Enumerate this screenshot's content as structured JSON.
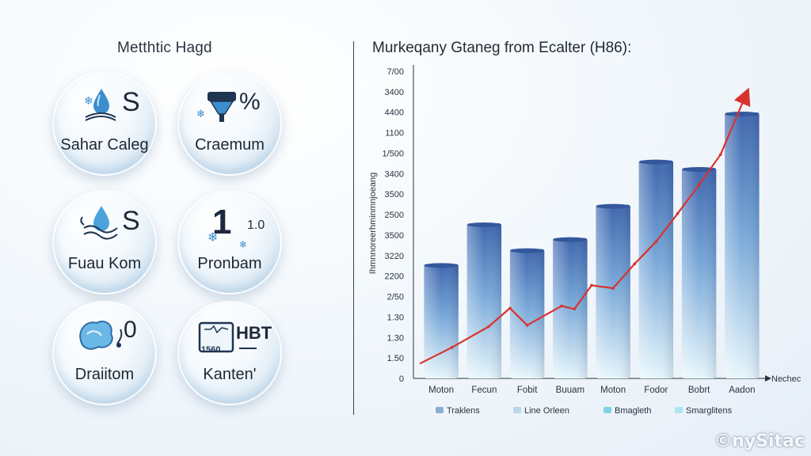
{
  "left_panel": {
    "title": "Metthtic Hagd",
    "tiles": [
      {
        "label": "Sahar Caleg",
        "icon": "water-drop-book-icon",
        "badge": "S"
      },
      {
        "label": "Craemum",
        "icon": "funnel-percent-icon",
        "badge": "%"
      },
      {
        "label": "Fuau Kom",
        "icon": "water-drop-waves-icon",
        "badge": "S"
      },
      {
        "label": "Pronbam",
        "icon": "number-one-icon",
        "badge": "1",
        "badge_small": "1.0"
      },
      {
        "label": "Draiitom",
        "icon": "water-creature-icon",
        "badge": "0"
      },
      {
        "label": "Kanten'",
        "icon": "thermometer-box-icon",
        "badge": "HBT",
        "badge_small": "1560"
      }
    ]
  },
  "chart_data": {
    "type": "bar",
    "title": "Murkeqany Gtaneg from Ecalter (H86):",
    "ylabel": "Ihmnnoreerhminmnjoeang",
    "xlabel": "Nechec",
    "y_ticks": [
      "7/00",
      "3400",
      "4400",
      "1100",
      "1/500",
      "3400",
      "3500",
      "2500",
      "3500",
      "3220",
      "2200",
      "2/50",
      "1.30",
      "1.30",
      "1.50",
      "0"
    ],
    "categories": [
      "Moton",
      "Fecun",
      "Fobit",
      "Buuam",
      "Moton",
      "Fodor",
      "Bobrt",
      "Aadon"
    ],
    "bars": [
      {
        "x": 0.5,
        "value": 1550
      },
      {
        "x": 1.5,
        "value": 2100
      },
      {
        "x": 2.5,
        "value": 1750
      },
      {
        "x": 3.5,
        "value": 1900
      },
      {
        "x": 4.5,
        "value": 2350
      },
      {
        "x": 5.5,
        "value": 2950
      },
      {
        "x": 6.5,
        "value": 2850
      },
      {
        "x": 7.5,
        "value": 3600
      }
    ],
    "trend_line": {
      "color": "#d8332e",
      "x": [
        0,
        0.75,
        1.6,
        2.1,
        2.5,
        3.3,
        3.6,
        4.0,
        4.5,
        5.0,
        5.5,
        6.0,
        6.5,
        7.0,
        7.6
      ],
      "y": [
        200,
        420,
        700,
        950,
        720,
        980,
        940,
        1260,
        1220,
        1550,
        1850,
        2230,
        2620,
        3030,
        3850
      ]
    },
    "ylim": [
      0,
      4200
    ],
    "legend": [
      {
        "label": "Traklens",
        "color": "#8aaed6"
      },
      {
        "label": "Line Orleen",
        "color": "#b8d6ec"
      },
      {
        "label": "Bmagleth",
        "color": "#7fd3e6"
      },
      {
        "label": "Smarglitens",
        "color": "#a8e6f0"
      }
    ],
    "legend_position": "bottom",
    "colors": {
      "bar_top": "#3e66ad",
      "bar_bottom": "#e6f6fb",
      "axis": "#2a3340"
    }
  },
  "watermark": "©nySitac"
}
